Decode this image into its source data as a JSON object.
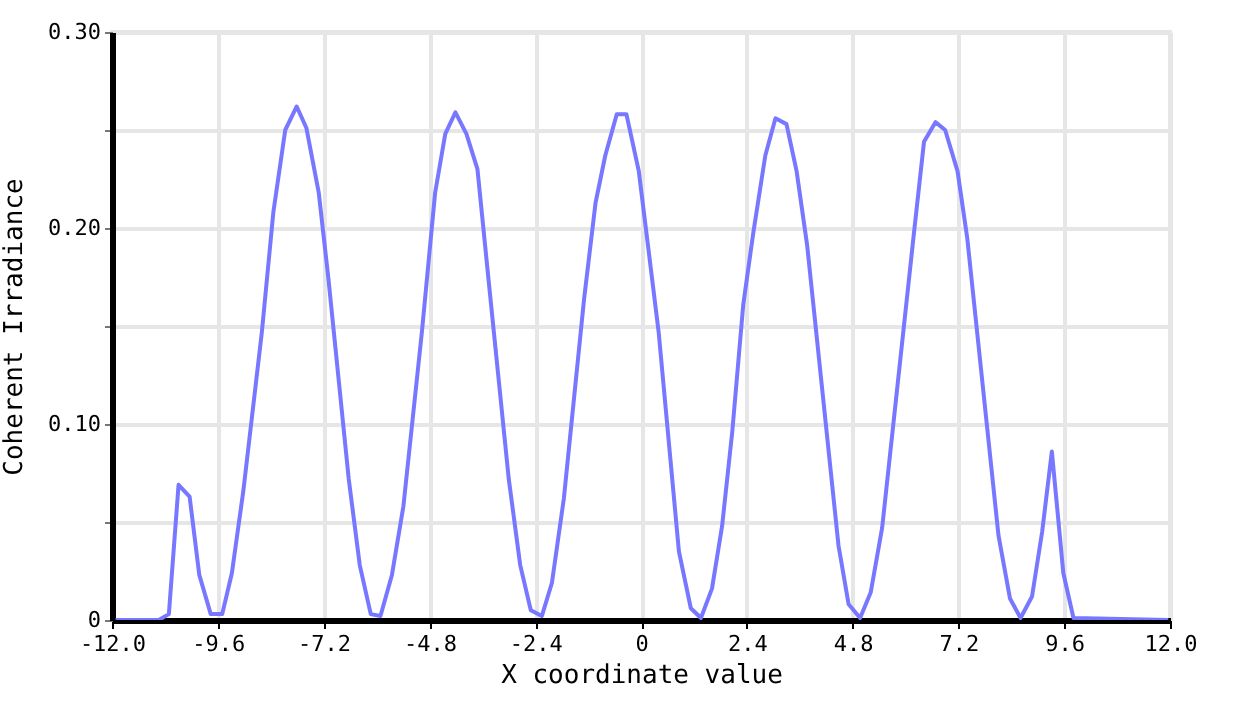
{
  "chart_data": {
    "type": "line",
    "xlabel": "X coordinate value",
    "ylabel": "Coherent Irradiance",
    "grid": true,
    "marker": "none",
    "line_style": "solid",
    "xlim": [
      -12,
      12
    ],
    "ylim": [
      0,
      0.3
    ],
    "xticks": [
      {
        "value": -12,
        "label": "-12.0"
      },
      -9.6,
      -7.2,
      -4.8,
      -2.4,
      0,
      2.4,
      4.8,
      7.2,
      9.6,
      {
        "value": 12,
        "label": "12.0"
      }
    ],
    "yticks": [
      0,
      {
        "value": 0.05,
        "label": null
      },
      {
        "value": 0.1,
        "label": "0.10"
      },
      {
        "value": 0.15,
        "label": null
      },
      {
        "value": 0.2,
        "label": "0.20"
      },
      {
        "value": 0.25,
        "label": null
      },
      {
        "value": 0.3,
        "label": "0.30"
      }
    ],
    "series": [
      {
        "color": "#7777ff",
        "x": [
          -11.92,
          -10.94,
          -10.71,
          -10.49,
          -10.24,
          -10.02,
          -9.76,
          -9.5,
          -9.28,
          -9.02,
          -8.6,
          -8.34,
          -8.07,
          -7.81,
          -7.59,
          -7.31,
          -7.09,
          -6.63,
          -6.38,
          -6.13,
          -5.91,
          -5.65,
          -5.39,
          -4.97,
          -4.67,
          -4.44,
          -4.21,
          -3.96,
          -3.71,
          -3.46,
          -3.0,
          -2.74,
          -2.5,
          -2.25,
          -2.02,
          -1.75,
          -1.29,
          -1.03,
          -0.81,
          -0.55,
          -0.33,
          -0.05,
          0.4,
          0.86,
          1.13,
          1.36,
          1.61,
          1.84,
          2.07,
          2.32,
          2.55,
          2.82,
          3.05,
          3.3,
          3.53,
          3.77,
          4.48,
          4.71,
          4.97,
          5.21,
          5.47,
          6.18,
          6.42,
          6.68,
          6.9,
          7.18,
          7.4,
          8.11,
          8.37,
          8.61,
          8.87,
          9.1,
          9.32,
          9.58,
          9.81,
          11.96
        ],
        "values": [
          0,
          0,
          0.003,
          0.069,
          0.063,
          0.023,
          0.003,
          0.003,
          0.024,
          0.066,
          0.147,
          0.208,
          0.25,
          0.262,
          0.251,
          0.218,
          0.174,
          0.072,
          0.028,
          0.003,
          0.002,
          0.023,
          0.058,
          0.147,
          0.218,
          0.248,
          0.259,
          0.248,
          0.23,
          0.174,
          0.072,
          0.028,
          0.005,
          0.002,
          0.019,
          0.062,
          0.164,
          0.213,
          0.237,
          0.258,
          0.258,
          0.229,
          0.147,
          0.035,
          0.006,
          0.001,
          0.016,
          0.048,
          0.096,
          0.161,
          0.198,
          0.237,
          0.256,
          0.253,
          0.229,
          0.191,
          0.038,
          0.008,
          0.001,
          0.014,
          0.047,
          0.195,
          0.244,
          0.254,
          0.25,
          0.229,
          0.195,
          0.043,
          0.011,
          0.001,
          0.012,
          0.045,
          0.086,
          0.024,
          0.001,
          0
        ]
      }
    ]
  }
}
